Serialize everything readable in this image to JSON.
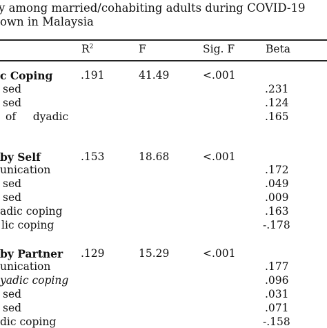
{
  "caption": {
    "line1": "y among married/cohabiting adults during COVID-19",
    "line2": "own in Malaysia"
  },
  "header": {
    "r2": "R",
    "r2_sup": "2",
    "f": "F",
    "sig": "Sig. F",
    "beta": "Beta"
  },
  "groups": [
    {
      "label": "c Coping",
      "r2": ".191",
      "f": "41.49",
      "sig": "<.001",
      "rows": [
        {
          "label": "sed",
          "beta": ".231"
        },
        {
          "label": "sed",
          "beta": ".124"
        },
        {
          "label": "of     dyadic",
          "beta": ".165"
        }
      ]
    },
    {
      "label": "by Self",
      "r2": ".153",
      "f": "18.68",
      "sig": "<.001",
      "rows": [
        {
          "label": "unication",
          "beta": ".172"
        },
        {
          "label": "sed",
          "beta": ".049"
        },
        {
          "label": "sed",
          "beta": ".009"
        },
        {
          "label": "adic coping",
          "beta": ".163"
        },
        {
          "label": "lic coping",
          "beta": "-.178"
        }
      ]
    },
    {
      "label": "by Partner",
      "r2": ".129",
      "f": "15.29",
      "sig": "<.001",
      "rows": [
        {
          "label": "unication",
          "beta": ".177"
        },
        {
          "label": "yadic coping",
          "beta": ".096"
        },
        {
          "label": "sed",
          "beta": ".031"
        },
        {
          "label": "sed",
          "beta": ".071"
        },
        {
          "label": "dic coping",
          "beta": "-.158"
        }
      ]
    }
  ]
}
